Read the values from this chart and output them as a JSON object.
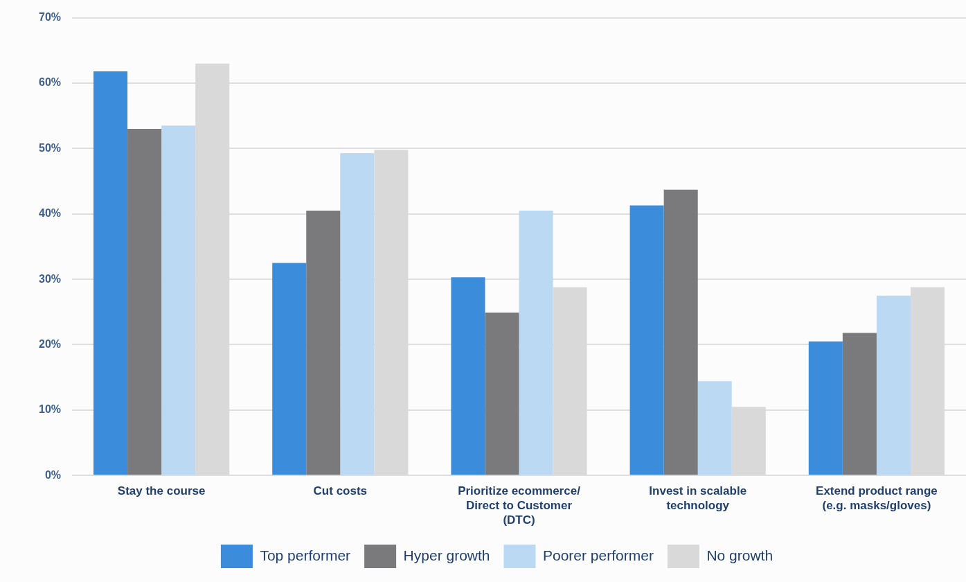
{
  "chart_data": {
    "type": "bar",
    "categories": [
      "Stay the course",
      "Cut costs",
      "Prioritize ecommerce/ Direct to Customer (DTC)",
      "Invest in scalable technology",
      "Extend product range (e.g. masks/gloves)"
    ],
    "series": [
      {
        "name": "Top performer",
        "color": "#3b8ddb",
        "values": [
          61.8,
          32.5,
          30.3,
          41.3,
          20.5
        ]
      },
      {
        "name": "Hyper growth",
        "color": "#7a7a7c",
        "values": [
          53,
          40.5,
          24.9,
          43.7,
          21.8
        ]
      },
      {
        "name": "Poorer performer",
        "color": "#bcd9f3",
        "values": [
          53.5,
          49.3,
          40.5,
          14.4,
          27.5
        ]
      },
      {
        "name": "No growth",
        "color": "#d9d9d9",
        "values": [
          63,
          49.8,
          28.8,
          10.5,
          28.8
        ]
      }
    ],
    "ylim": [
      0,
      70
    ],
    "yticks": [
      {
        "value": 0,
        "label": "0%"
      },
      {
        "value": 10,
        "label": "10%"
      },
      {
        "value": 20,
        "label": "20%"
      },
      {
        "value": 30,
        "label": "30%"
      },
      {
        "value": 40,
        "label": "40%"
      },
      {
        "value": 50,
        "label": "50%"
      },
      {
        "value": 60,
        "label": "60%"
      },
      {
        "value": 70,
        "label": "70%"
      }
    ],
    "grid": "y",
    "legend": "bottom"
  }
}
